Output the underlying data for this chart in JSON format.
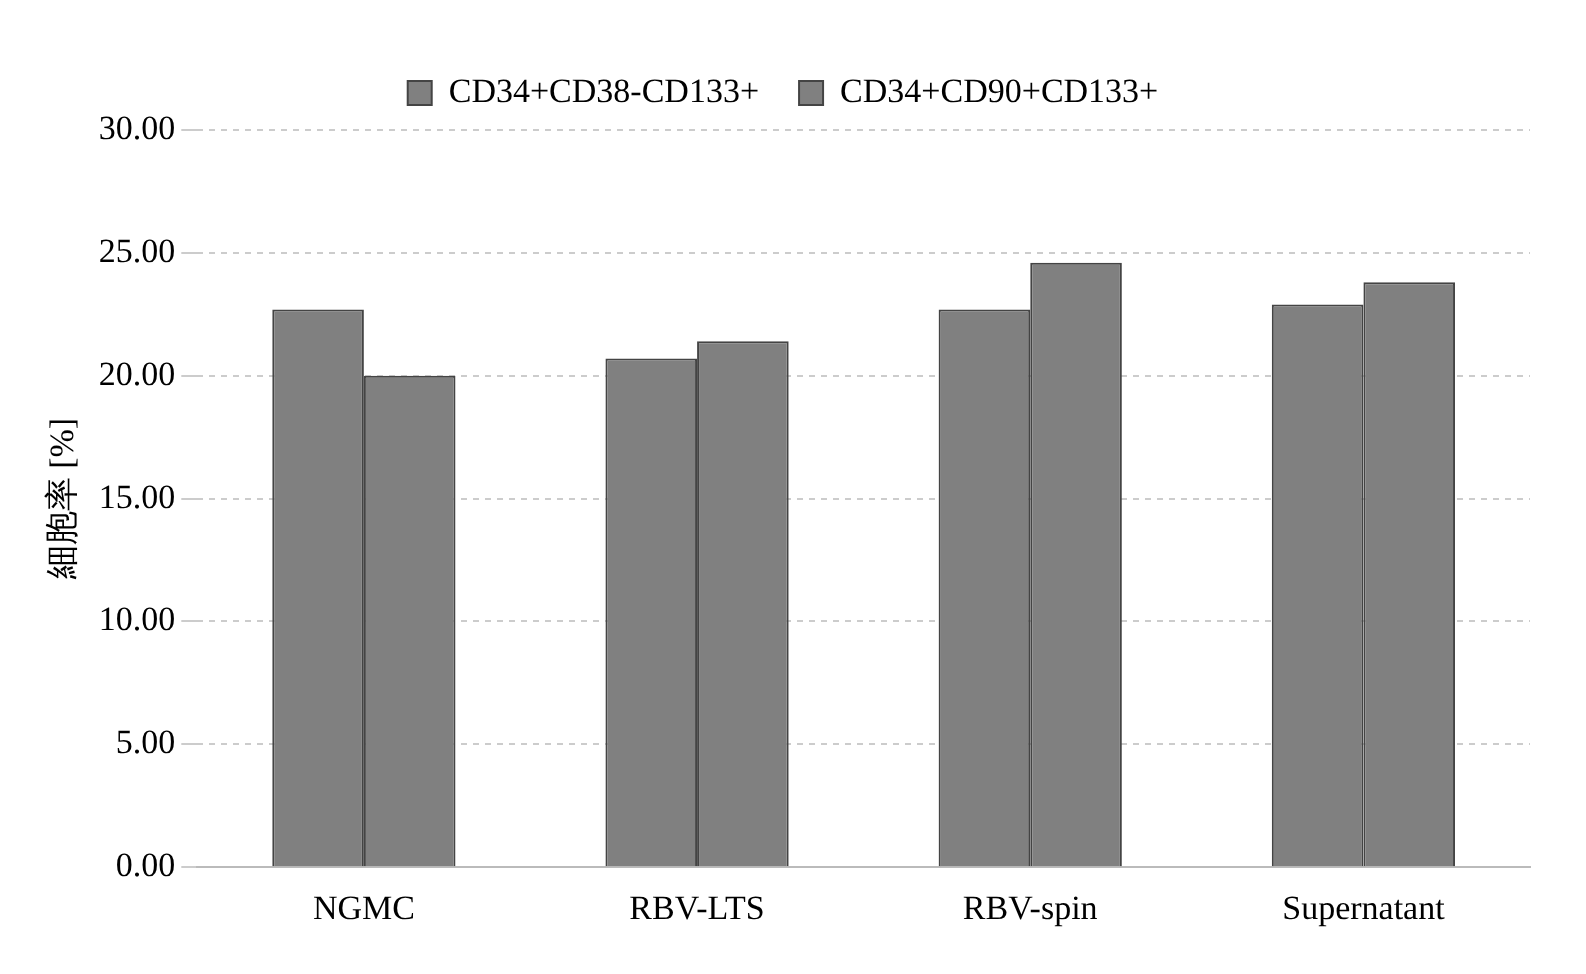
{
  "chart_data": {
    "type": "bar",
    "ylabel": "細胞率 [%]",
    "categories": [
      "NGMC",
      "RBV-LTS",
      "RBV-spin",
      "Supernatant"
    ],
    "series": [
      {
        "name": "CD34+CD38-CD133+",
        "color": "#808080",
        "values": [
          22.7,
          20.7,
          22.7,
          22.9
        ]
      },
      {
        "name": "CD34+CD90+CD133+",
        "color": "#808080",
        "values": [
          20.0,
          21.4,
          24.6,
          23.8
        ]
      }
    ],
    "ylim": [
      0,
      30
    ],
    "yticks": [
      {
        "value": 0,
        "label": "0.00"
      },
      {
        "value": 5,
        "label": "5.00"
      },
      {
        "value": 10,
        "label": "10.00"
      },
      {
        "value": 15,
        "label": "15.00"
      },
      {
        "value": 20,
        "label": "20.00"
      },
      {
        "value": 25,
        "label": "25.00"
      },
      {
        "value": 30,
        "label": "30.00"
      }
    ],
    "grid": "y",
    "legend": "top"
  }
}
